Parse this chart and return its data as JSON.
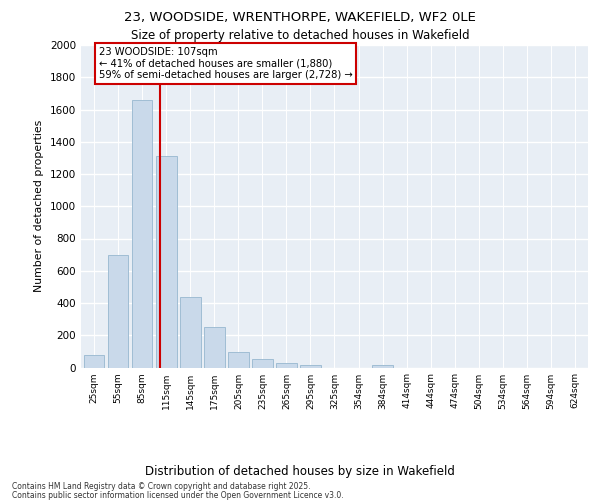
{
  "title_line1": "23, WOODSIDE, WRENTHORPE, WAKEFIELD, WF2 0LE",
  "title_line2": "Size of property relative to detached houses in Wakefield",
  "xlabel": "Distribution of detached houses by size in Wakefield",
  "ylabel": "Number of detached properties",
  "categories": [
    "25sqm",
    "55sqm",
    "85sqm",
    "115sqm",
    "145sqm",
    "175sqm",
    "205sqm",
    "235sqm",
    "265sqm",
    "295sqm",
    "325sqm",
    "354sqm",
    "384sqm",
    "414sqm",
    "444sqm",
    "474sqm",
    "504sqm",
    "534sqm",
    "564sqm",
    "594sqm",
    "624sqm"
  ],
  "values": [
    75,
    700,
    1660,
    1310,
    440,
    250,
    95,
    55,
    30,
    15,
    0,
    0,
    15,
    0,
    0,
    0,
    0,
    0,
    0,
    0,
    0
  ],
  "bar_color": "#c9d9ea",
  "bar_edge_color": "#a0bdd4",
  "vline_color": "#cc0000",
  "vline_position": 2.72,
  "annotation_title": "23 WOODSIDE: 107sqm",
  "annotation_line2": "← 41% of detached houses are smaller (1,880)",
  "annotation_line3": "59% of semi-detached houses are larger (2,728) →",
  "background_color": "#e8eef5",
  "grid_color": "#ffffff",
  "footnote_line1": "Contains HM Land Registry data © Crown copyright and database right 2025.",
  "footnote_line2": "Contains public sector information licensed under the Open Government Licence v3.0.",
  "ylim": [
    0,
    2000
  ],
  "yticks": [
    0,
    200,
    400,
    600,
    800,
    1000,
    1200,
    1400,
    1600,
    1800,
    2000
  ]
}
